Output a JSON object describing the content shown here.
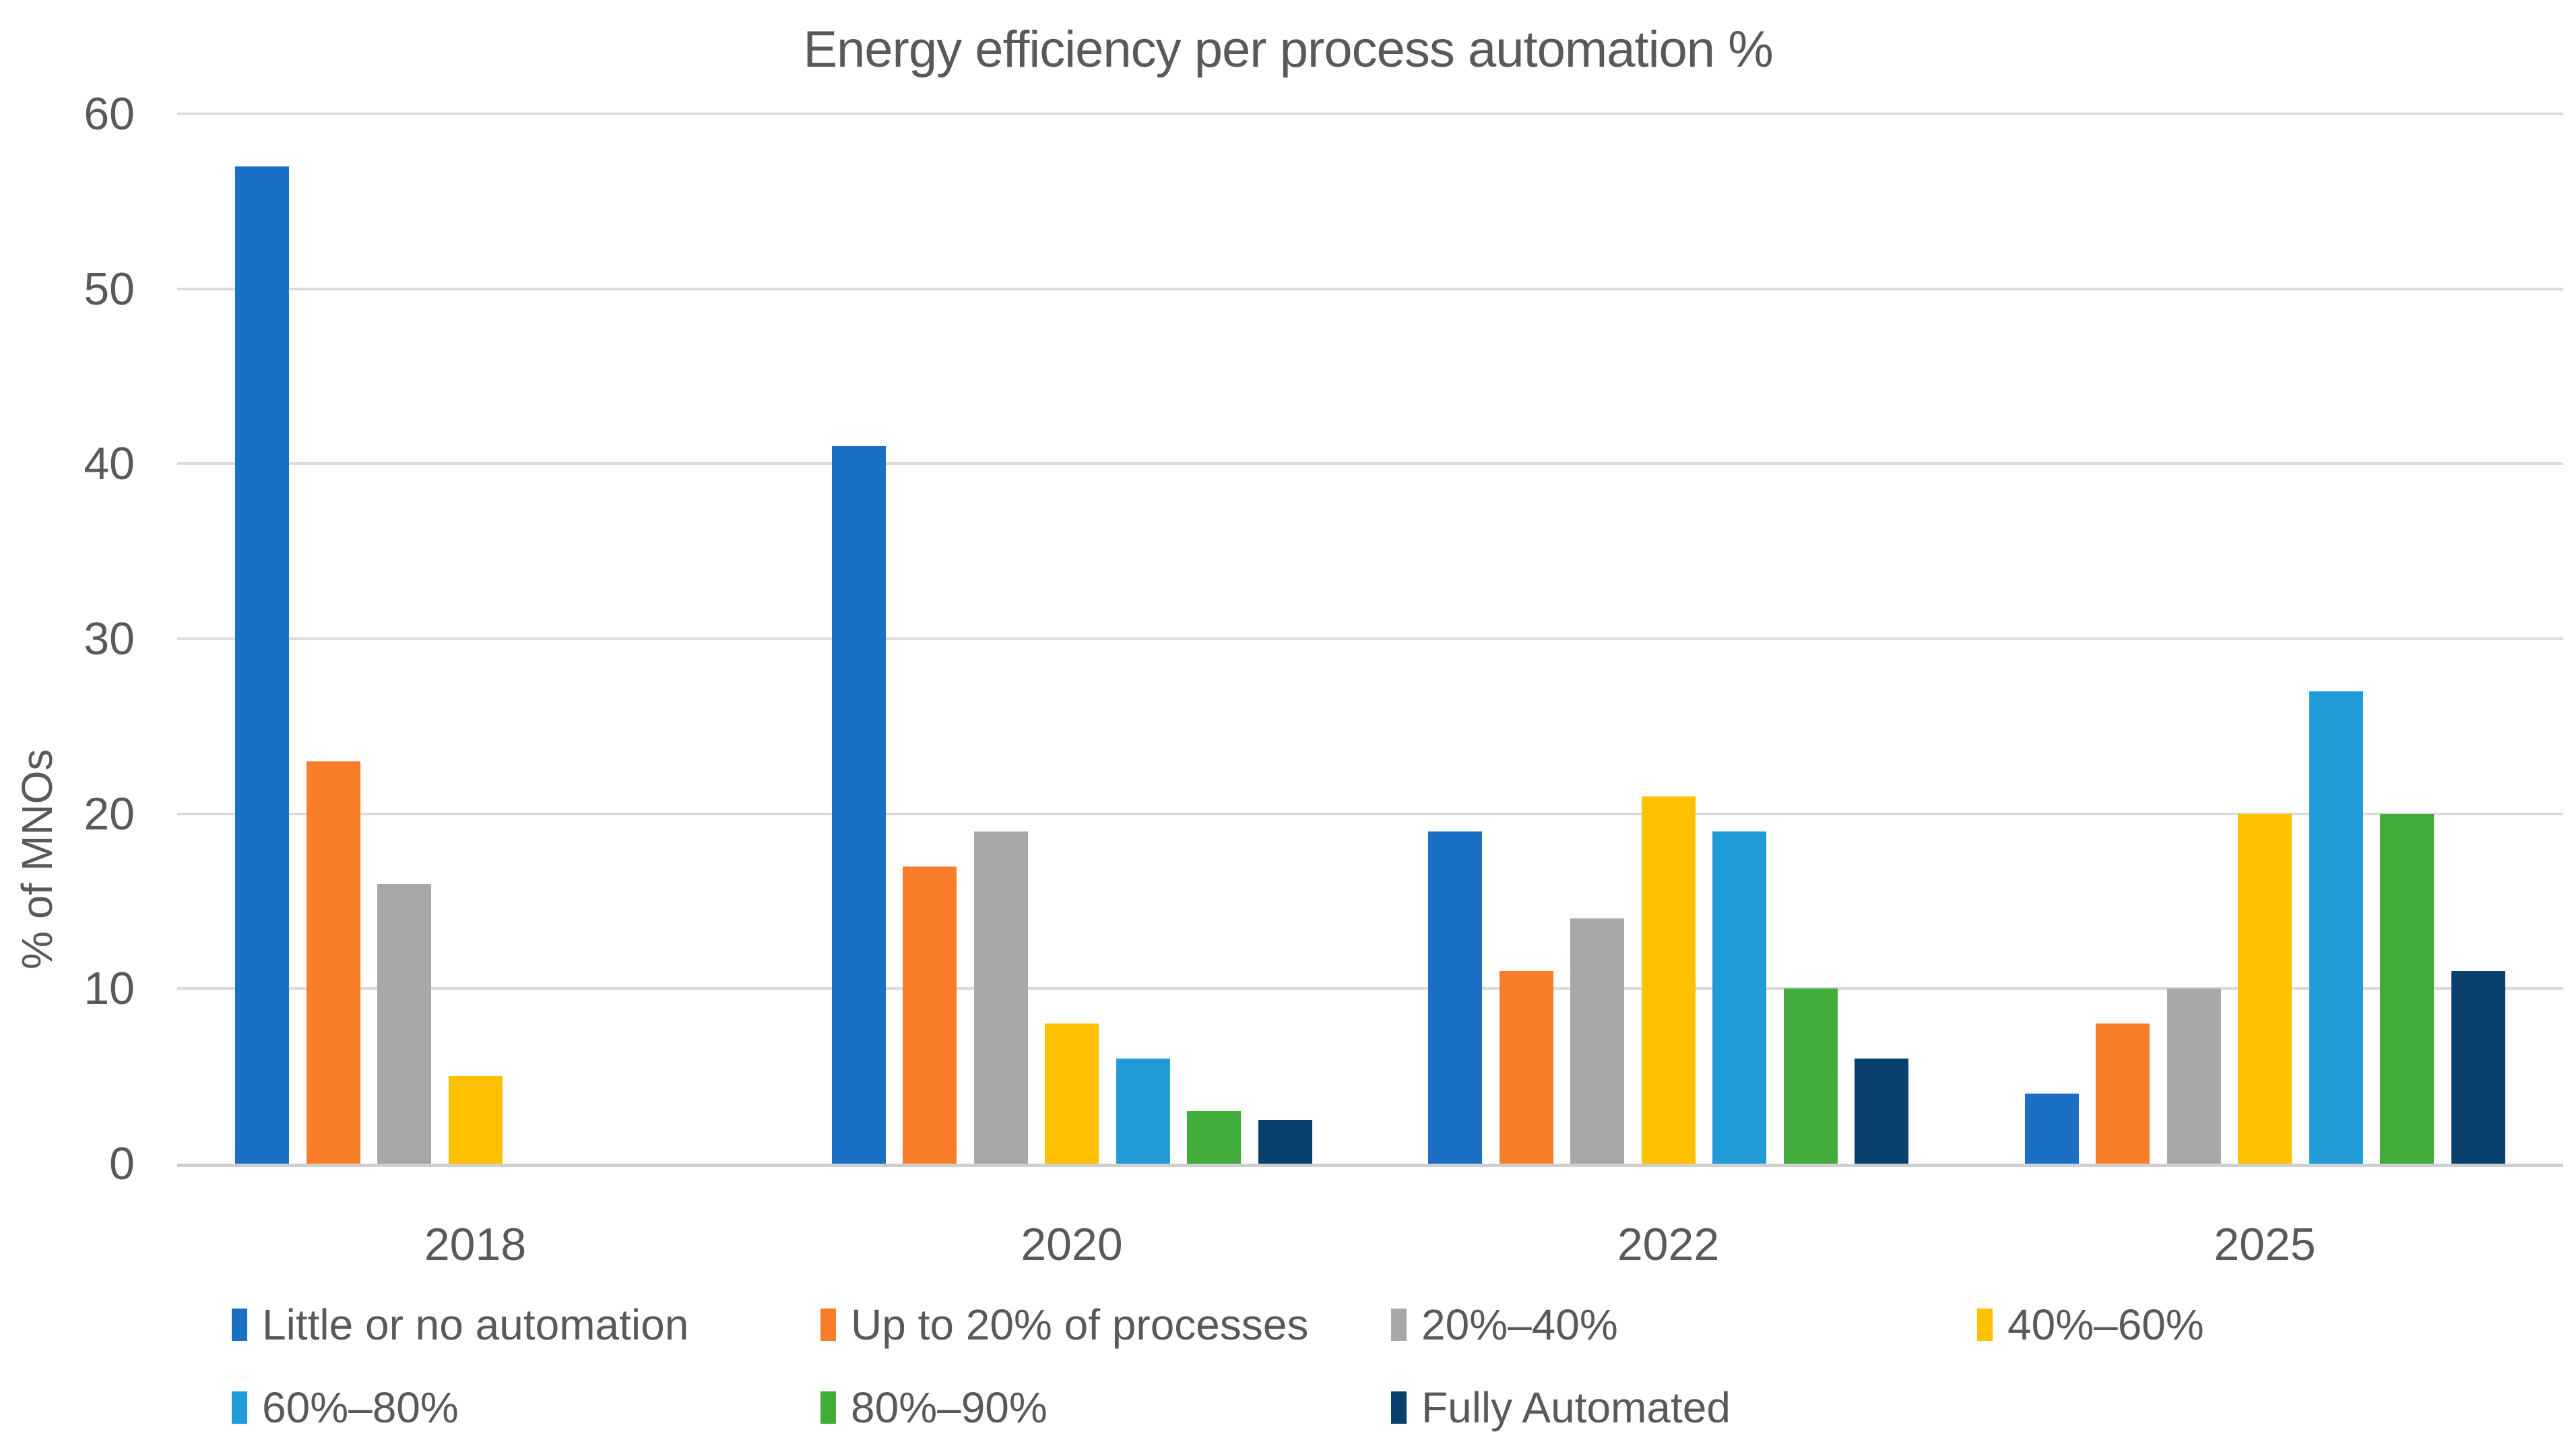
{
  "title": "Energy efficiency per process automation %",
  "y_axis_label": "% of MNOs",
  "text_color": "#595959",
  "gridline_color": "#dbdbdb",
  "axis_line_color": "#cfcfcf",
  "chart_data": {
    "type": "bar",
    "title": "Energy efficiency per process automation %",
    "xlabel": "",
    "ylabel": "% of MNOs",
    "categories": [
      "2018",
      "2020",
      "2022",
      "2025"
    ],
    "series": [
      {
        "name": "Little or no automation",
        "color": "#1b6fc5",
        "values": [
          57,
          41,
          19,
          4
        ]
      },
      {
        "name": "Up to 20% of processes",
        "color": "#f97c28",
        "values": [
          23,
          17,
          11,
          8
        ]
      },
      {
        "name": "20%–40%",
        "color": "#a8a8a8",
        "values": [
          16,
          19,
          14,
          10
        ]
      },
      {
        "name": "40%–60%",
        "color": "#ffc000",
        "values": [
          5,
          8,
          21,
          20
        ]
      },
      {
        "name": "60%–80%",
        "color": "#219cd8",
        "values": [
          0,
          6,
          19,
          27
        ]
      },
      {
        "name": "80%–90%",
        "color": "#42ac3b",
        "values": [
          0,
          3,
          10,
          20
        ]
      },
      {
        "name": "Fully Automated",
        "color": "#0a406e",
        "values": [
          0,
          2.5,
          6,
          11
        ]
      }
    ],
    "ylim": [
      0,
      60
    ],
    "y_ticks": [
      0,
      10,
      20,
      30,
      40,
      50,
      60
    ],
    "grid": true,
    "legend_position": "bottom"
  }
}
